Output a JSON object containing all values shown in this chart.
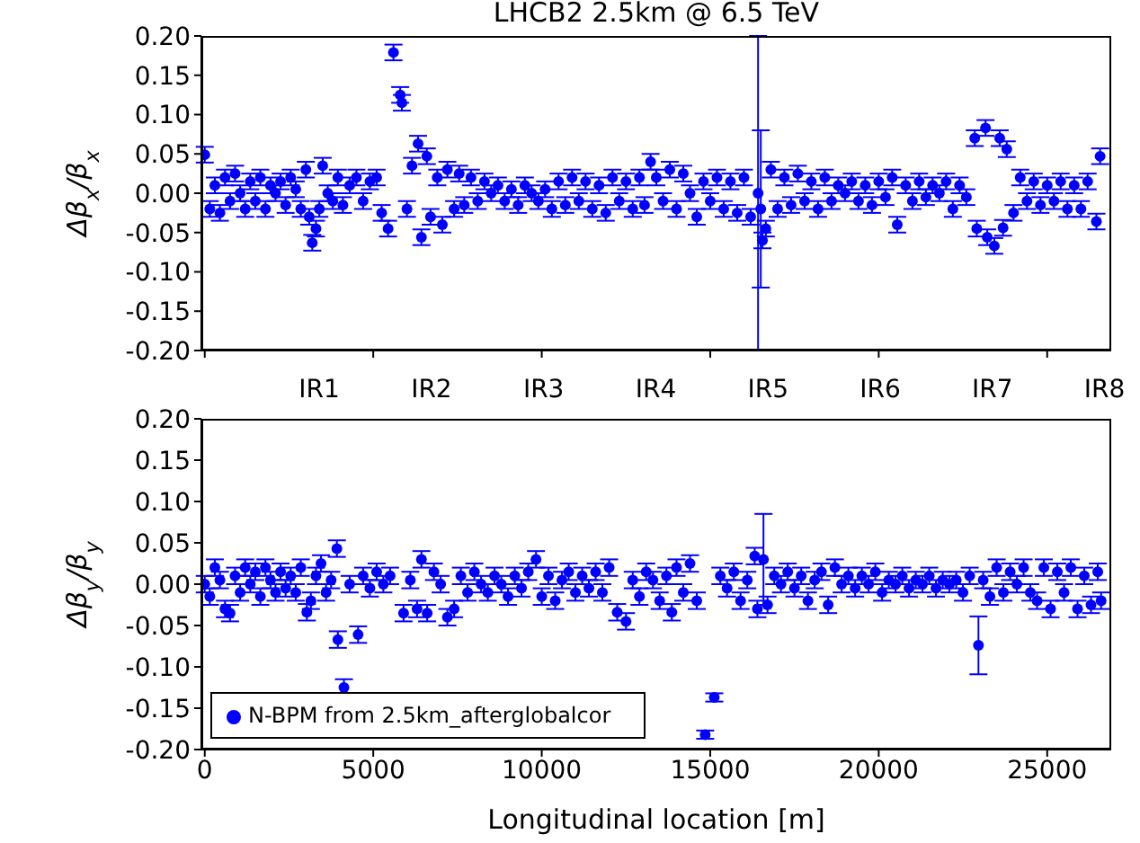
{
  "chart_data": [
    {
      "type": "scatter",
      "title": "LHCB2 2.5km @ 6.5 TeV",
      "ylabel": "Δβ$_{x}$/β$_{x}$",
      "marker": "circle",
      "tick_labels": "y",
      "xlim": [
        -100,
        26900
      ],
      "xticks": [
        {
          "value": 0,
          "label": null
        },
        {
          "value": 5000,
          "label": null
        },
        {
          "value": 10000,
          "label": null
        },
        {
          "value": 15000,
          "label": null
        },
        {
          "value": 20000,
          "label": null
        },
        {
          "value": 25000,
          "label": null
        }
      ],
      "ylim": [
        -0.2,
        0.2
      ],
      "yticks": [
        {
          "value": -0.2,
          "label": "-0.20"
        },
        {
          "value": -0.15,
          "label": "-0.15"
        },
        {
          "value": -0.1,
          "label": "-0.10"
        },
        {
          "value": -0.05,
          "label": "-0.05"
        },
        {
          "value": 0,
          "label": "0.00"
        },
        {
          "value": 0.05,
          "label": "0.05"
        },
        {
          "value": 0.1,
          "label": "0.10"
        },
        {
          "value": 0.15,
          "label": "0.15"
        },
        {
          "value": 0.2,
          "label": "0.20"
        }
      ],
      "series": [
        {
          "color": "#0000ff",
          "x": [
            0,
            150,
            300,
            450,
            600,
            750,
            900,
            1050,
            1200,
            1350,
            1500,
            1650,
            1800,
            1950,
            2100,
            2250,
            2400,
            2550,
            2700,
            2850,
            3000,
            3100,
            3190,
            3300,
            3400,
            3500,
            3650,
            3800,
            3950,
            4100,
            4300,
            4500,
            4700,
            4900,
            5100,
            5250,
            5440,
            5600,
            5800,
            5850,
            6000,
            6150,
            6330,
            6430,
            6590,
            6700,
            6900,
            7050,
            7200,
            7400,
            7550,
            7700,
            7900,
            8100,
            8300,
            8500,
            8700,
            8900,
            9100,
            9300,
            9500,
            9700,
            9900,
            10100,
            10300,
            10500,
            10700,
            10900,
            11100,
            11300,
            11500,
            11700,
            11900,
            12100,
            12300,
            12500,
            12700,
            12900,
            13050,
            13230,
            13400,
            13600,
            13800,
            14000,
            14200,
            14400,
            14600,
            14800,
            15000,
            15200,
            15400,
            15600,
            15800,
            16000,
            16200,
            16420,
            16500,
            16550,
            16650,
            16800,
            17000,
            17200,
            17400,
            17600,
            17800,
            18000,
            18200,
            18400,
            18600,
            18800,
            19000,
            19200,
            19400,
            19600,
            19800,
            20000,
            20200,
            20400,
            20550,
            20800,
            21000,
            21200,
            21400,
            21600,
            21800,
            22000,
            22200,
            22400,
            22600,
            22850,
            22910,
            23170,
            23220,
            23430,
            23590,
            23690,
            23800,
            24000,
            24200,
            24400,
            24600,
            24800,
            25000,
            25200,
            25400,
            25600,
            25800,
            26000,
            26200,
            26460,
            26570
          ],
          "values": [
            0.049,
            -0.02,
            0.01,
            -0.025,
            0.02,
            -0.01,
            0.025,
            0,
            -0.02,
            0.015,
            -0.01,
            0.02,
            -0.02,
            0.01,
            0,
            0.015,
            -0.015,
            0.02,
            0.005,
            -0.02,
            0.03,
            -0.03,
            -0.063,
            -0.045,
            -0.02,
            0.035,
            0,
            -0.01,
            0.02,
            -0.015,
            0.01,
            0.02,
            -0.01,
            0.015,
            0.02,
            -0.025,
            -0.045,
            0.179,
            0.125,
            0.115,
            -0.02,
            0.035,
            0.063,
            -0.056,
            0.047,
            -0.03,
            0.02,
            -0.04,
            0.03,
            -0.02,
            0.025,
            -0.015,
            0.02,
            -0.01,
            0.015,
            0,
            0.01,
            -0.01,
            0.005,
            -0.015,
            0.01,
            0,
            -0.01,
            0.005,
            -0.02,
            0.015,
            -0.015,
            0.02,
            -0.01,
            0.015,
            -0.02,
            0.01,
            -0.025,
            0.02,
            -0.01,
            0.015,
            -0.02,
            0.02,
            -0.015,
            0.04,
            0.02,
            -0.01,
            0.03,
            -0.02,
            0.025,
            0,
            -0.03,
            0.015,
            -0.01,
            0.02,
            -0.02,
            0.015,
            -0.025,
            0.02,
            -0.03,
            0,
            -0.02,
            -0.06,
            -0.045,
            0.03,
            -0.02,
            0.02,
            -0.015,
            0.025,
            -0.01,
            0.015,
            -0.02,
            0.02,
            -0.01,
            0.01,
            0,
            0.015,
            -0.01,
            0.01,
            -0.015,
            0.015,
            -0.005,
            0.02,
            -0.04,
            0.01,
            -0.01,
            0.015,
            -0.005,
            0.01,
            0,
            0.015,
            -0.02,
            0.01,
            -0.005,
            0.07,
            -0.045,
            0.083,
            -0.056,
            -0.067,
            0.07,
            -0.044,
            0.056,
            -0.025,
            0.02,
            -0.01,
            0.015,
            -0.015,
            0.01,
            -0.01,
            0.015,
            -0.02,
            0.01,
            -0.02,
            0.015,
            -0.036,
            0.047
          ],
          "errors": [
            0.01,
            0.01,
            0.01,
            0.01,
            0.01,
            0.01,
            0.01,
            0.01,
            0.01,
            0.01,
            0.01,
            0.01,
            0.01,
            0.01,
            0.01,
            0.01,
            0.01,
            0.01,
            0.01,
            0.01,
            0.01,
            0.01,
            0.01,
            0.01,
            0.01,
            0.01,
            0.01,
            0.01,
            0.01,
            0.01,
            0.01,
            0.01,
            0.01,
            0.01,
            0.01,
            0.01,
            0.01,
            0.01,
            0.01,
            0.01,
            0.01,
            0.01,
            0.01,
            0.01,
            0.01,
            0.01,
            0.01,
            0.01,
            0.01,
            0.01,
            0.01,
            0.01,
            0.01,
            0.01,
            0.01,
            0.01,
            0.01,
            0.01,
            0.01,
            0.01,
            0.01,
            0.01,
            0.01,
            0.01,
            0.01,
            0.01,
            0.01,
            0.01,
            0.01,
            0.01,
            0.01,
            0.01,
            0.01,
            0.01,
            0.01,
            0.01,
            0.01,
            0.01,
            0.01,
            0.01,
            0.01,
            0.01,
            0.01,
            0.01,
            0.01,
            0.01,
            0.01,
            0.01,
            0.01,
            0.01,
            0.01,
            0.01,
            0.01,
            0.01,
            0.01,
            0.2,
            0.1,
            0.01,
            0.01,
            0.01,
            0.01,
            0.01,
            0.01,
            0.01,
            0.01,
            0.01,
            0.01,
            0.01,
            0.01,
            0.01,
            0.01,
            0.01,
            0.01,
            0.01,
            0.01,
            0.01,
            0.01,
            0.01,
            0.01,
            0.01,
            0.01,
            0.01,
            0.01,
            0.01,
            0.01,
            0.01,
            0.01,
            0.01,
            0.01,
            0.01,
            0.01,
            0.01,
            0.01,
            0.01,
            0.01,
            0.01,
            0.01,
            0.01,
            0.01,
            0.01,
            0.01,
            0.01,
            0.01,
            0.01,
            0.01,
            0.01,
            0.01,
            0.01,
            0.01,
            0.01,
            0.01
          ]
        }
      ]
    },
    {
      "type": "scatter",
      "xlabel": "Longitudinal location [m]",
      "ylabel": "Δβ$_{y}$/β$_{y}$",
      "marker": "circle",
      "legend": "bottom left",
      "xlim": [
        -100,
        26900
      ],
      "xticks": [
        0,
        5000,
        10000,
        15000,
        20000,
        25000
      ],
      "annotations": [
        "IR1",
        "IR2",
        "IR3",
        "IR4",
        "IR5",
        "IR6",
        "IR7",
        "IR8"
      ],
      "ylim": [
        -0.2,
        0.2
      ],
      "yticks": [
        {
          "value": -0.2,
          "label": "-0.20"
        },
        {
          "value": -0.15,
          "label": "-0.15"
        },
        {
          "value": -0.1,
          "label": "-0.10"
        },
        {
          "value": -0.05,
          "label": "-0.05"
        },
        {
          "value": 0,
          "label": "0.00"
        },
        {
          "value": 0.05,
          "label": "0.05"
        },
        {
          "value": 0.1,
          "label": "0.10"
        },
        {
          "value": 0.15,
          "label": "0.15"
        },
        {
          "value": 0.2,
          "label": "0.20"
        }
      ],
      "series": [
        {
          "name": "N-BPM from 2.5km_afterglobalcor",
          "color": "#0000ff",
          "x": [
            0,
            150,
            300,
            450,
            600,
            750,
            900,
            1050,
            1200,
            1350,
            1500,
            1650,
            1800,
            1950,
            2100,
            2250,
            2400,
            2550,
            2700,
            2850,
            3030,
            3150,
            3300,
            3450,
            3600,
            3750,
            3920,
            3950,
            4130,
            4300,
            4550,
            4700,
            4900,
            5100,
            5300,
            5500,
            5900,
            6100,
            6300,
            6430,
            6600,
            6800,
            7000,
            7200,
            7400,
            7600,
            7800,
            8000,
            8200,
            8400,
            8600,
            8800,
            9000,
            9200,
            9400,
            9600,
            9830,
            10000,
            10200,
            10400,
            10600,
            10800,
            11000,
            11200,
            11400,
            11600,
            11800,
            12000,
            12240,
            12500,
            12700,
            12900,
            13100,
            13300,
            13500,
            13700,
            13860,
            14000,
            14200,
            14400,
            14600,
            14850,
            15120,
            15300,
            15500,
            15700,
            15900,
            16100,
            16320,
            16400,
            16580,
            16700,
            16900,
            17100,
            17300,
            17500,
            17700,
            17900,
            18100,
            18300,
            18500,
            18700,
            18900,
            19100,
            19300,
            19500,
            19700,
            19900,
            20100,
            20300,
            20500,
            20700,
            20900,
            21100,
            21300,
            21500,
            21700,
            21900,
            22100,
            22300,
            22500,
            22700,
            22960,
            23100,
            23300,
            23500,
            23700,
            23900,
            24100,
            24300,
            24500,
            24700,
            24900,
            25100,
            25300,
            25500,
            25700,
            25900,
            26100,
            26300,
            26500,
            26600
          ],
          "values": [
            0,
            -0.015,
            0.02,
            0.005,
            -0.03,
            -0.035,
            0.01,
            -0.01,
            0.02,
            0,
            0.015,
            -0.015,
            0.02,
            0.005,
            -0.01,
            0.015,
            -0.005,
            0.01,
            -0.01,
            0.02,
            -0.034,
            -0.02,
            0.01,
            0.025,
            -0.01,
            0.005,
            0.043,
            -0.067,
            -0.125,
            0,
            -0.061,
            0.01,
            -0.005,
            0.015,
            0,
            0.01,
            -0.035,
            0.005,
            -0.03,
            0.03,
            -0.035,
            0.015,
            0,
            -0.04,
            -0.03,
            0.01,
            -0.01,
            0.015,
            0,
            -0.01,
            0.01,
            0,
            -0.015,
            0.01,
            -0.005,
            0.015,
            0.03,
            -0.015,
            0.01,
            -0.02,
            0.005,
            0.015,
            -0.01,
            0.01,
            -0.005,
            0.015,
            -0.01,
            0.02,
            -0.034,
            -0.045,
            0.005,
            -0.015,
            0.015,
            0.005,
            -0.02,
            0.01,
            -0.034,
            0.02,
            -0.01,
            0.025,
            -0.02,
            -0.182,
            -0.137,
            0.01,
            -0.005,
            0.015,
            -0.02,
            0.005,
            0.034,
            -0.03,
            0.03,
            -0.025,
            0.01,
            0,
            0.015,
            -0.005,
            0.01,
            -0.02,
            0.005,
            0.015,
            -0.025,
            0.02,
            0,
            0.01,
            -0.005,
            0.01,
            0,
            0.015,
            -0.01,
            0.005,
            0,
            0.01,
            -0.005,
            0.005,
            0,
            0.01,
            -0.005,
            0.005,
            0,
            0.005,
            -0.01,
            0.01,
            -0.074,
            0.005,
            -0.015,
            0.02,
            -0.01,
            0.015,
            0,
            0.02,
            -0.01,
            -0.02,
            0.02,
            -0.03,
            0.015,
            -0.01,
            0.02,
            -0.03,
            0.01,
            -0.025,
            0.015,
            -0.02
          ],
          "errors": [
            0.01,
            0.01,
            0.01,
            0.01,
            0.01,
            0.01,
            0.01,
            0.01,
            0.01,
            0.01,
            0.01,
            0.01,
            0.01,
            0.01,
            0.01,
            0.01,
            0.01,
            0.01,
            0.01,
            0.01,
            0.01,
            0.01,
            0.01,
            0.01,
            0.01,
            0.01,
            0.01,
            0.01,
            0.01,
            0.01,
            0.01,
            0.01,
            0.01,
            0.01,
            0.01,
            0.01,
            0.01,
            0.01,
            0.01,
            0.01,
            0.01,
            0.01,
            0.01,
            0.01,
            0.01,
            0.01,
            0.01,
            0.01,
            0.01,
            0.01,
            0.01,
            0.01,
            0.01,
            0.01,
            0.01,
            0.01,
            0.01,
            0.01,
            0.01,
            0.01,
            0.01,
            0.01,
            0.01,
            0.01,
            0.01,
            0.01,
            0.01,
            0.01,
            0.01,
            0.01,
            0.01,
            0.01,
            0.01,
            0.01,
            0.01,
            0.01,
            0.01,
            0.01,
            0.01,
            0.01,
            0.01,
            0.005,
            0.005,
            0.01,
            0.01,
            0.01,
            0.01,
            0.01,
            0.01,
            0.01,
            0.055,
            0.01,
            0.01,
            0.01,
            0.01,
            0.01,
            0.01,
            0.01,
            0.01,
            0.01,
            0.01,
            0.01,
            0.01,
            0.01,
            0.01,
            0.01,
            0.01,
            0.01,
            0.01,
            0.01,
            0.01,
            0.01,
            0.01,
            0.01,
            0.01,
            0.01,
            0.01,
            0.01,
            0.01,
            0.01,
            0.01,
            0.01,
            0.035,
            0.01,
            0.01,
            0.01,
            0.01,
            0.01,
            0.01,
            0.01,
            0.01,
            0.01,
            0.01,
            0.01,
            0.01,
            0.01,
            0.01,
            0.01,
            0.01,
            0.01,
            0.01,
            0.01
          ]
        }
      ]
    }
  ]
}
